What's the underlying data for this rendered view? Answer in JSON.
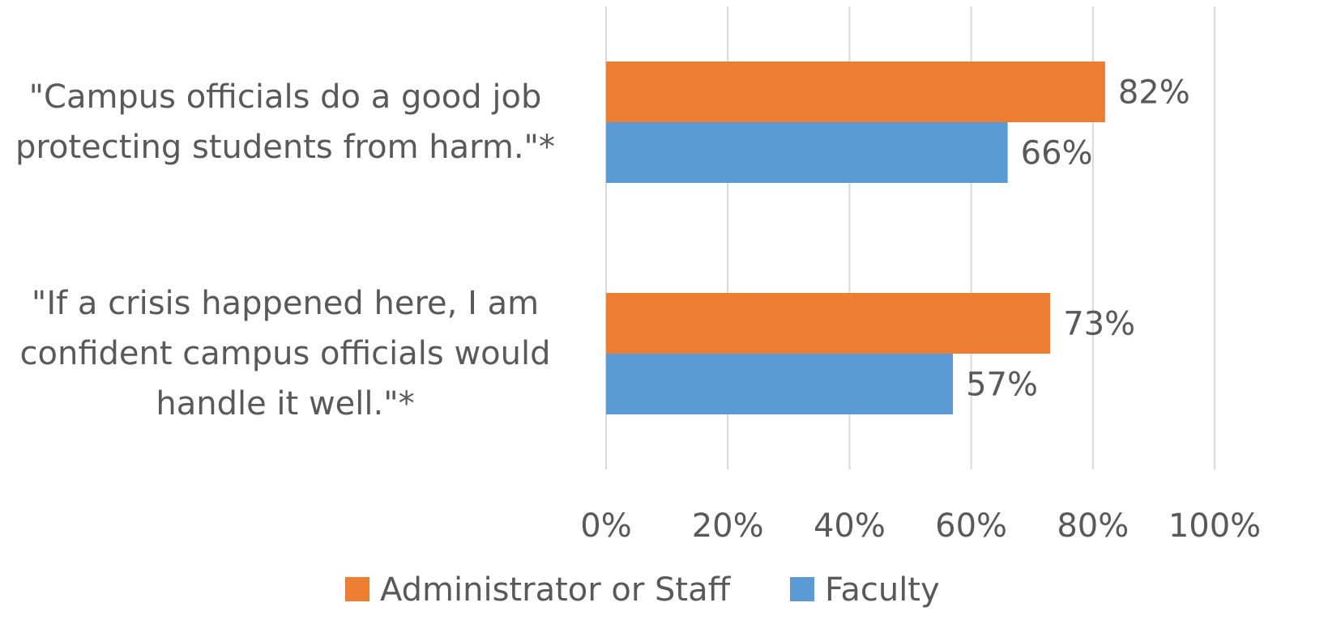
{
  "chart_data": {
    "type": "bar",
    "orientation": "horizontal",
    "categories": [
      "\"Campus officials do a good job protecting students from harm.\"*",
      "\"If a crisis happened here, I am confident campus officials would handle it well.\"*"
    ],
    "category_lines": [
      [
        "\"Campus officials do a good job",
        "protecting students from harm.\"*"
      ],
      [
        "\"If a crisis happened here, I am",
        "confident campus officials would",
        "handle it well.\"*"
      ]
    ],
    "series": [
      {
        "name": "Administrator or Staff",
        "color": "#ED7D31",
        "values": [
          82,
          73
        ],
        "labels": [
          "82%",
          "73%"
        ]
      },
      {
        "name": "Faculty",
        "color": "#5B9BD5",
        "values": [
          66,
          57
        ],
        "labels": [
          "66%",
          "57%"
        ]
      }
    ],
    "xlim": [
      0,
      100
    ],
    "x_ticks": [
      0,
      20,
      40,
      60,
      80,
      100
    ],
    "x_tick_labels": [
      "0%",
      "20%",
      "40%",
      "60%",
      "80%",
      "100%"
    ],
    "grid": true,
    "legend": "bottom"
  }
}
